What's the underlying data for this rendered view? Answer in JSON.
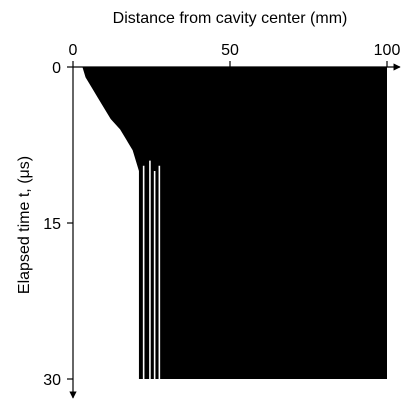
{
  "chart_data": {
    "type": "heatmap",
    "title": "",
    "xlabel": "Distance from cavity center (mm)",
    "ylabel": "Elapsed time t, (μs)",
    "x_axis_position": "top",
    "y_axis_direction": "downward",
    "xlim": [
      0,
      100
    ],
    "ylim": [
      0,
      30
    ],
    "x_ticks": [
      "0",
      "50",
      "100"
    ],
    "y_ticks": [
      "0",
      "15",
      "30"
    ],
    "grid": false,
    "colors": {
      "wave_region": "#000000",
      "background": "#ffffff"
    },
    "front_boundary": [
      {
        "t": 0.0,
        "x": 3
      },
      {
        "t": 1.0,
        "x": 4
      },
      {
        "t": 2.0,
        "x": 6
      },
      {
        "t": 3.0,
        "x": 8
      },
      {
        "t": 4.0,
        "x": 10
      },
      {
        "t": 5.0,
        "x": 12
      },
      {
        "t": 6.0,
        "x": 15
      },
      {
        "t": 7.0,
        "x": 17
      },
      {
        "t": 8.0,
        "x": 19
      },
      {
        "t": 9.0,
        "x": 20
      },
      {
        "t": 10.0,
        "x": 21
      },
      {
        "t": 11.0,
        "x": 21
      },
      {
        "t": 12.0,
        "x": 21
      },
      {
        "t": 13.0,
        "x": 21
      },
      {
        "t": 14.0,
        "x": 21
      },
      {
        "t": 30.0,
        "x": 21
      }
    ],
    "white_streaks": [
      {
        "x": 22.5,
        "t_start": 9.5
      },
      {
        "x": 24.5,
        "t_start": 9.0
      },
      {
        "x": 26.0,
        "t_start": 10.0
      },
      {
        "x": 27.5,
        "t_start": 9.5
      }
    ],
    "right_edge_x": 100,
    "bottom_t": 30
  }
}
